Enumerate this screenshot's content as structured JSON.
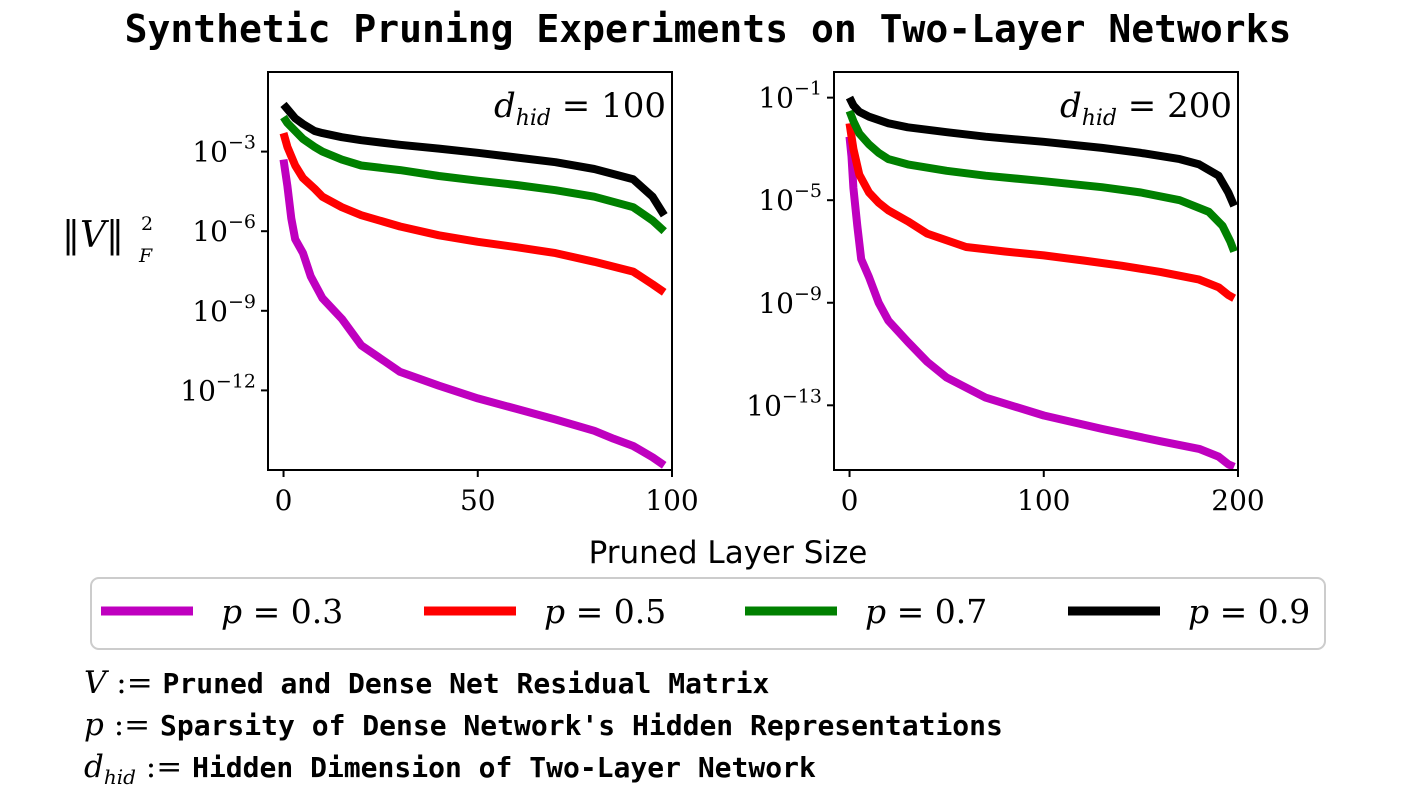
{
  "figure": {
    "title": "Synthetic Pruning Experiments on Two-Layer Networks",
    "shared_xlabel": "Pruned Layer Size",
    "ylabel_math": "‖V‖",
    "ylabel_sup": "2",
    "ylabel_sub": "F",
    "legend": [
      {
        "var": "p",
        "label": " = 0.3",
        "color": "#bf00bf"
      },
      {
        "var": "p",
        "label": " = 0.5",
        "color": "#ff0000"
      },
      {
        "var": "p",
        "label": " = 0.7",
        "color": "#008000"
      },
      {
        "var": "p",
        "label": " = 0.9",
        "color": "#000000"
      }
    ],
    "definitions": [
      {
        "symbol": "V",
        "sub": "",
        "assign": " := ",
        "text": "Pruned and Dense Net Residual Matrix"
      },
      {
        "symbol": "p",
        "sub": "",
        "assign": " := ",
        "text": "Sparsity of Dense Network's Hidden Representations"
      },
      {
        "symbol": "d",
        "sub": "hid",
        "assign": " := ",
        "text": "Hidden Dimension of Two-Layer Network"
      }
    ]
  },
  "chart_data": [
    {
      "type": "line",
      "title": "d_hid = 100",
      "annotation": {
        "var": "d",
        "sub": "hid",
        "text": " = 100"
      },
      "xlabel": "Pruned Layer Size",
      "ylabel": "||V||_F^2",
      "yscale": "log",
      "xlim": [
        -4,
        100
      ],
      "ylim": [
        1e-15,
        1
      ],
      "xticks": [
        0,
        50,
        100
      ],
      "xtick_labels": [
        "0",
        "50",
        "100"
      ],
      "yticks": [
        0.001,
        1e-06,
        1e-09,
        1e-12
      ],
      "ytick_labels": [
        {
          "base": "10",
          "exp": "−3"
        },
        {
          "base": "10",
          "exp": "−6"
        },
        {
          "base": "10",
          "exp": "−9"
        },
        {
          "base": "10",
          "exp": "−12"
        }
      ],
      "series": [
        {
          "name": "p = 0.3",
          "color": "#bf00bf",
          "x": [
            0,
            1,
            2,
            3,
            5,
            7,
            10,
            15,
            20,
            30,
            40,
            50,
            60,
            70,
            80,
            85,
            90,
            95,
            98
          ],
          "y": [
            0.0005,
            5e-05,
            3e-06,
            5e-07,
            1.5e-07,
            2e-08,
            3e-09,
            5e-10,
            5e-11,
            5e-12,
            1.5e-12,
            5e-13,
            2e-13,
            8e-14,
            3e-14,
            1.5e-14,
            8e-15,
            3e-15,
            1.5e-15
          ]
        },
        {
          "name": "p = 0.5",
          "color": "#ff0000",
          "x": [
            0,
            1,
            3,
            5,
            8,
            10,
            15,
            20,
            30,
            40,
            50,
            60,
            70,
            80,
            90,
            95,
            98
          ],
          "y": [
            0.005,
            0.0015,
            0.0003,
            0.0001,
            4e-05,
            2e-05,
            8e-06,
            4e-06,
            1.5e-06,
            7e-07,
            4e-07,
            2.5e-07,
            1.5e-07,
            7e-08,
            3e-08,
            1e-08,
            5e-09
          ]
        },
        {
          "name": "p = 0.7",
          "color": "#008000",
          "x": [
            0,
            1,
            3,
            5,
            8,
            10,
            15,
            20,
            30,
            40,
            50,
            60,
            70,
            80,
            90,
            95,
            98
          ],
          "y": [
            0.02,
            0.012,
            0.006,
            0.003,
            0.0015,
            0.001,
            0.0005,
            0.0003,
            0.0002,
            0.00012,
            8e-05,
            5.5e-05,
            3.5e-05,
            2e-05,
            8e-06,
            2.5e-06,
            1e-06
          ]
        },
        {
          "name": "p = 0.9",
          "color": "#000000",
          "x": [
            0,
            1,
            3,
            5,
            8,
            10,
            15,
            20,
            30,
            40,
            50,
            60,
            70,
            80,
            90,
            95,
            98
          ],
          "y": [
            0.06,
            0.04,
            0.018,
            0.011,
            0.006,
            0.005,
            0.0035,
            0.0027,
            0.0018,
            0.0013,
            0.0009,
            0.0006,
            0.0004,
            0.00022,
            9e-05,
            2e-05,
            4e-06
          ]
        }
      ]
    },
    {
      "type": "line",
      "title": "d_hid = 200",
      "annotation": {
        "var": "d",
        "sub": "hid",
        "text": " = 200"
      },
      "xlabel": "Pruned Layer Size",
      "ylabel": "||V||_F^2",
      "yscale": "log",
      "xlim": [
        -8,
        200
      ],
      "ylim": [
        3e-16,
        1
      ],
      "xticks": [
        0,
        100,
        200
      ],
      "xtick_labels": [
        "0",
        "100",
        "200"
      ],
      "yticks": [
        0.1,
        1e-05,
        1e-09,
        1e-13
      ],
      "ytick_labels": [
        {
          "base": "10",
          "exp": "−1"
        },
        {
          "base": "10",
          "exp": "−5"
        },
        {
          "base": "10",
          "exp": "−9"
        },
        {
          "base": "10",
          "exp": "−13"
        }
      ],
      "series": [
        {
          "name": "p = 0.3",
          "color": "#bf00bf",
          "x": [
            0,
            1,
            2,
            4,
            6,
            10,
            15,
            20,
            30,
            40,
            50,
            70,
            100,
            130,
            160,
            180,
            190,
            195,
            198
          ],
          "y": [
            0.003,
            0.0005,
            3e-05,
            1e-06,
            5e-08,
            1e-08,
            1e-09,
            2e-10,
            3e-11,
            5e-12,
            1.2e-12,
            2e-13,
            4e-14,
            1.2e-14,
            4e-15,
            2e-15,
            1e-15,
            5e-16,
            4e-16
          ]
        },
        {
          "name": "p = 0.5",
          "color": "#ff0000",
          "x": [
            0,
            2,
            5,
            10,
            15,
            20,
            30,
            40,
            60,
            80,
            100,
            120,
            140,
            160,
            180,
            190,
            195,
            198
          ],
          "y": [
            0.01,
            0.001,
            0.0001,
            2e-05,
            8e-06,
            4e-06,
            1.5e-06,
            5e-07,
            1.5e-07,
            1e-07,
            7e-08,
            4.5e-08,
            2.8e-08,
            1.6e-08,
            8e-09,
            4e-09,
            2e-09,
            1.5e-09
          ]
        },
        {
          "name": "p = 0.7",
          "color": "#008000",
          "x": [
            0,
            2,
            5,
            10,
            15,
            20,
            30,
            50,
            70,
            100,
            130,
            150,
            170,
            185,
            192,
            196,
            198
          ],
          "y": [
            0.03,
            0.012,
            0.004,
            0.0015,
            0.0007,
            0.0004,
            0.00025,
            0.00014,
            9e-05,
            5.5e-05,
            3.2e-05,
            2e-05,
            1e-05,
            3.5e-06,
            1e-06,
            2.5e-07,
            1e-07
          ]
        },
        {
          "name": "p = 0.9",
          "color": "#000000",
          "x": [
            0,
            2,
            5,
            10,
            20,
            30,
            50,
            70,
            100,
            130,
            150,
            170,
            180,
            190,
            195,
            198
          ],
          "y": [
            0.1,
            0.05,
            0.028,
            0.018,
            0.01,
            0.007,
            0.0045,
            0.003,
            0.0019,
            0.0011,
            0.0007,
            0.0004,
            0.00025,
            9e-05,
            2e-05,
            6e-06
          ]
        }
      ]
    }
  ]
}
